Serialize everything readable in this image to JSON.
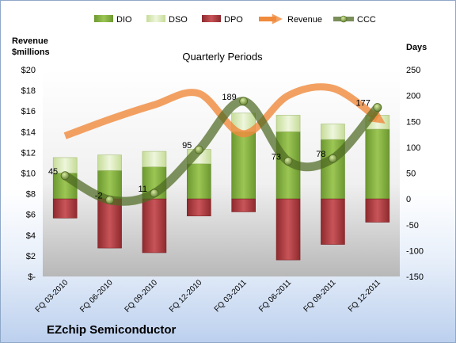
{
  "chart_data": {
    "type": "bar",
    "company": "EZchip Semiconductor",
    "title": "Quarterly Periods",
    "ylabel_left": [
      "Revenue",
      "$millions"
    ],
    "ylabel_right": "Days",
    "categories": [
      "FQ 03-2010",
      "FQ 06-2010",
      "FQ 09-2010",
      "FQ 12-2010",
      "FQ 03-2011",
      "FQ 06-2011",
      "FQ 09-2011",
      "FQ 12-2011"
    ],
    "left_axis": {
      "min": 0,
      "max": 20,
      "ticks": [
        "$-",
        "$2",
        "$4",
        "$6",
        "$8",
        "$10",
        "$12",
        "$14",
        "$16",
        "$18",
        "$20"
      ]
    },
    "right_axis": {
      "min": -150,
      "max": 250,
      "ticks": [
        -150,
        -100,
        -50,
        0,
        50,
        100,
        150,
        200,
        250
      ]
    },
    "legend": [
      "DIO",
      "DSO",
      "DPO",
      "Revenue",
      "CCC"
    ],
    "legend_position": "top",
    "colors": {
      "DIO": "#7fa93a",
      "DSO": "#d6e8b0",
      "DPO": "#b03a3e",
      "Revenue": "#f08a3c",
      "CCC": "#5e7a2e"
    },
    "series": [
      {
        "name": "DIO",
        "axis": "right",
        "values": [
          50,
          55,
          62,
          68,
          130,
          130,
          115,
          135
        ]
      },
      {
        "name": "DSO",
        "axis": "right",
        "values": [
          30,
          30,
          30,
          28,
          36,
          32,
          30,
          27
        ]
      },
      {
        "name": "DPO",
        "axis": "right",
        "values": [
          -37,
          -95,
          -104,
          -33,
          -25,
          -118,
          -88,
          -45
        ]
      },
      {
        "name": "Revenue",
        "axis": "left",
        "values": [
          13.6,
          15.2,
          16.6,
          17.7,
          13.8,
          17.5,
          18.2,
          15.3
        ]
      },
      {
        "name": "CCC",
        "axis": "right",
        "values": [
          45,
          -2,
          11,
          95,
          189,
          73,
          78,
          177
        ]
      }
    ],
    "ccc_labels": [
      "45",
      "-2",
      "11",
      "95",
      "189",
      "73",
      "78",
      "177"
    ]
  }
}
